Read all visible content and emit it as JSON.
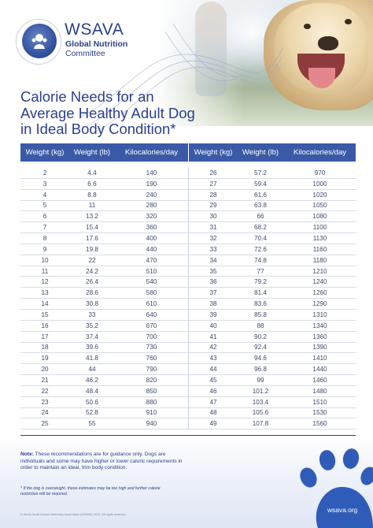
{
  "brand": {
    "name": "WSAVA",
    "line1": "Global Nutrition",
    "line2": "Committee"
  },
  "title": {
    "line1": "Calorie Needs for an",
    "line2": "Average Healthy Adult Dog",
    "line3": "in Ideal Body Condition*"
  },
  "table": {
    "headers": [
      "Weight (kg)",
      "Weight (lb)",
      "Kilocalories/day"
    ],
    "left_rows": [
      [
        "2",
        "4.4",
        "140"
      ],
      [
        "3",
        "6.6",
        "190"
      ],
      [
        "4",
        "8.8",
        "240"
      ],
      [
        "5",
        "11",
        "280"
      ],
      [
        "6",
        "13.2",
        "320"
      ],
      [
        "7",
        "15.4",
        "360"
      ],
      [
        "8",
        "17.6",
        "400"
      ],
      [
        "9",
        "19.8",
        "440"
      ],
      [
        "10",
        "22",
        "470"
      ],
      [
        "11",
        "24.2",
        "510"
      ],
      [
        "12",
        "26.4",
        "540"
      ],
      [
        "13",
        "28.6",
        "580"
      ],
      [
        "14",
        "30.8",
        "610"
      ],
      [
        "15",
        "33",
        "640"
      ],
      [
        "16",
        "35.2",
        "670"
      ],
      [
        "17",
        "37.4",
        "700"
      ],
      [
        "18",
        "39.6",
        "730"
      ],
      [
        "19",
        "41.8",
        "760"
      ],
      [
        "20",
        "44",
        "790"
      ],
      [
        "21",
        "46.2",
        "820"
      ],
      [
        "22",
        "48.4",
        "850"
      ],
      [
        "23",
        "50.6",
        "880"
      ],
      [
        "24",
        "52.8",
        "910"
      ],
      [
        "25",
        "55",
        "940"
      ]
    ],
    "right_rows": [
      [
        "26",
        "57.2",
        "970"
      ],
      [
        "27",
        "59.4",
        "1000"
      ],
      [
        "28",
        "61.6",
        "1020"
      ],
      [
        "29",
        "63.8",
        "1050"
      ],
      [
        "30",
        "66",
        "1080"
      ],
      [
        "31",
        "68.2",
        "1100"
      ],
      [
        "32",
        "70.4",
        "1130"
      ],
      [
        "33",
        "72.6",
        "1160"
      ],
      [
        "34",
        "74.8",
        "1180"
      ],
      [
        "35",
        "77",
        "1210"
      ],
      [
        "36",
        "79.2",
        "1240"
      ],
      [
        "37",
        "81.4",
        "1260"
      ],
      [
        "38",
        "83.6",
        "1290"
      ],
      [
        "39",
        "85.8",
        "1310"
      ],
      [
        "40",
        "88",
        "1340"
      ],
      [
        "41",
        "90.2",
        "1360"
      ],
      [
        "42",
        "92.4",
        "1390"
      ],
      [
        "43",
        "94.6",
        "1410"
      ],
      [
        "44",
        "96.8",
        "1440"
      ],
      [
        "45",
        "99",
        "1460"
      ],
      [
        "46",
        "101.2",
        "1480"
      ],
      [
        "47",
        "103.4",
        "1510"
      ],
      [
        "48",
        "105.6",
        "1530"
      ],
      [
        "49",
        "107.8",
        "1560"
      ]
    ]
  },
  "note": {
    "label": "Note:",
    "text": " These recommendations are for guidance only. Dogs are individuals and some may have higher or lower caloric requirements in order to maintain an ideal, trim body condition.",
    "footnote": "* If the dog is overweight, these estimates may be too high and further calorie restriction will be required."
  },
  "copyright": "© World Small Animal Veterinary Association (WSAVA) 2013. All rights reserved.",
  "site": "wsava.org",
  "colors": {
    "brand_blue": "#2c3f8c",
    "header_blue": "#3a5aa8",
    "paw_blue": "#2f5cb8"
  }
}
